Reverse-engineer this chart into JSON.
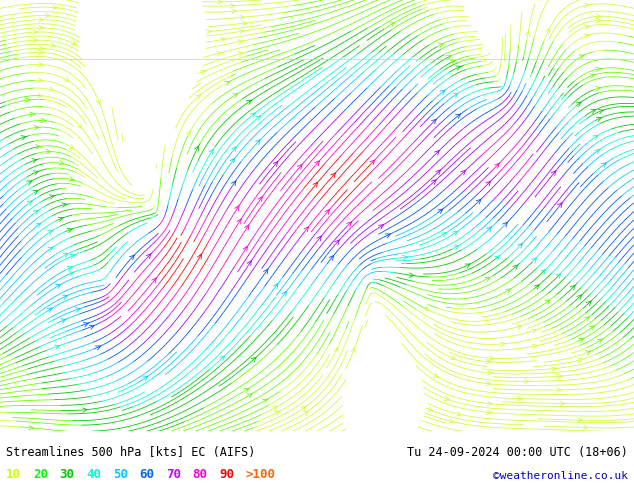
{
  "title_left": "Streamlines 500 hPa [kts] EC (AIFS)",
  "title_right": "Tu 24-09-2024 00:00 UTC (18+06)",
  "credit": "©weatheronline.co.uk",
  "legend_values": [
    "10",
    "20",
    "30",
    "40",
    "50",
    "60",
    "70",
    "80",
    "90",
    ">100"
  ],
  "legend_colors": [
    "#ccff00",
    "#00ff00",
    "#00cc00",
    "#00ffcc",
    "#00ccff",
    "#0066ff",
    "#cc00ff",
    "#ff00cc",
    "#ff0000",
    "#ff6600"
  ],
  "speed_levels": [
    0,
    10,
    20,
    30,
    40,
    50,
    60,
    70,
    80,
    90,
    100,
    150
  ],
  "colormap_colors": [
    "#ffffff",
    "#ccff33",
    "#66ff00",
    "#00cc00",
    "#00ffcc",
    "#00ccff",
    "#0055ff",
    "#aa00ff",
    "#ff00cc",
    "#ff0000",
    "#ff8800"
  ],
  "background_color": "#ffffff",
  "fig_width": 6.34,
  "fig_height": 4.9,
  "dpi": 100,
  "seed": 42,
  "n_streamlines": 800,
  "map_xlim": [
    -80,
    40
  ],
  "map_ylim": [
    25,
    75
  ],
  "bottom_bar_color": "#f0f0f0",
  "bottom_text_color": "#000000",
  "credit_color": "#0000cc"
}
